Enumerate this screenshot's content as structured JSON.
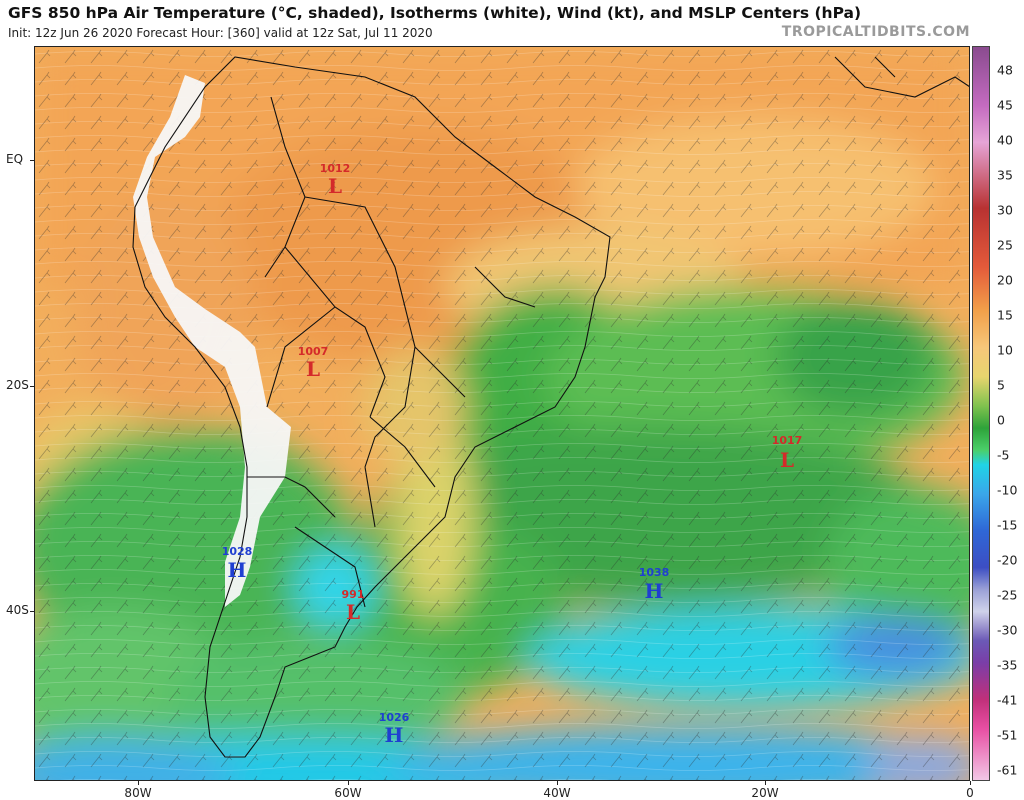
{
  "header": {
    "title": "GFS 850 hPa Air Temperature (°C, shaded), Isotherms (white), Wind (kt), and MSLP Centers (hPa)",
    "subtitle": "Init: 12z Jun 26 2020   Forecast Hour: [360]   valid at 12z Sat, Jul 11 2020",
    "site": "TROPICALTIDBITS.COM"
  },
  "axes": {
    "lat_labels": [
      "EQ",
      "20S",
      "40S"
    ],
    "lon_labels": [
      "80W",
      "60W",
      "40W",
      "20W",
      "0"
    ]
  },
  "colorbar": {
    "labels": [
      "48",
      "45",
      "40",
      "35",
      "30",
      "25",
      "20",
      "15",
      "10",
      "5",
      "0",
      "-5",
      "-10",
      "-15",
      "-20",
      "-25",
      "-30",
      "-35",
      "-41",
      "-51",
      "-61"
    ]
  },
  "pressure_centers": [
    {
      "value": "1012",
      "letter": "L",
      "color": "#d42a2a"
    },
    {
      "value": "1007",
      "letter": "L",
      "color": "#d42a2a"
    },
    {
      "value": "1017",
      "letter": "L",
      "color": "#d42a2a"
    },
    {
      "value": "991",
      "letter": "L",
      "color": "#d42a2a"
    },
    {
      "value": "1028",
      "letter": "H",
      "color": "#1f3fd1"
    },
    {
      "value": "1038",
      "letter": "H",
      "color": "#1f3fd1"
    },
    {
      "value": "1026",
      "letter": "H",
      "color": "#1f3fd1"
    }
  ]
}
